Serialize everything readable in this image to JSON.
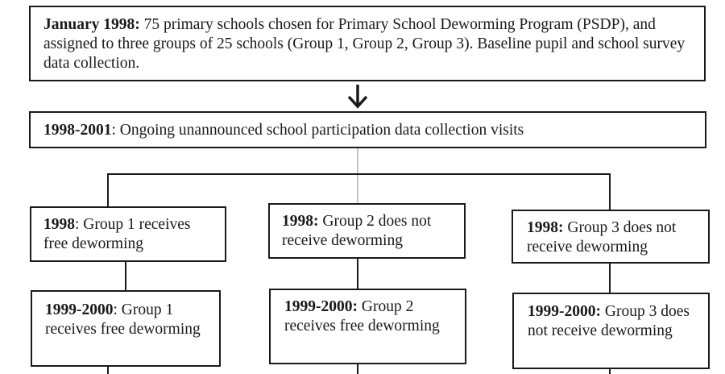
{
  "top_box": {
    "label": "January 1998:",
    "text": " 75 primary schools chosen for Primary School Deworming Program (PSDP), and assigned to three groups of 25 schools (Group 1, Group 2, Group 3). Baseline pupil and school survey data collection."
  },
  "second_box": {
    "label": "1998-2001",
    "text": ": Ongoing unannounced school participation data collection visits"
  },
  "groups": [
    {
      "year1_label": "1998",
      "year1_text": ": Group 1 receives free deworming",
      "year2_label": "1999-2000",
      "year2_text": ": Group 1 receives free deworming"
    },
    {
      "year1_label": "1998:",
      "year1_text": " Group 2 does not receive deworming",
      "year2_label": "1999-2000:",
      "year2_text": " Group 2 receives free deworming"
    },
    {
      "year1_label": "1998:",
      "year1_text": " Group 3 does not receive deworming",
      "year2_label": "1999-2000:",
      "year2_text": " Group 3 does not receive deworming"
    }
  ]
}
